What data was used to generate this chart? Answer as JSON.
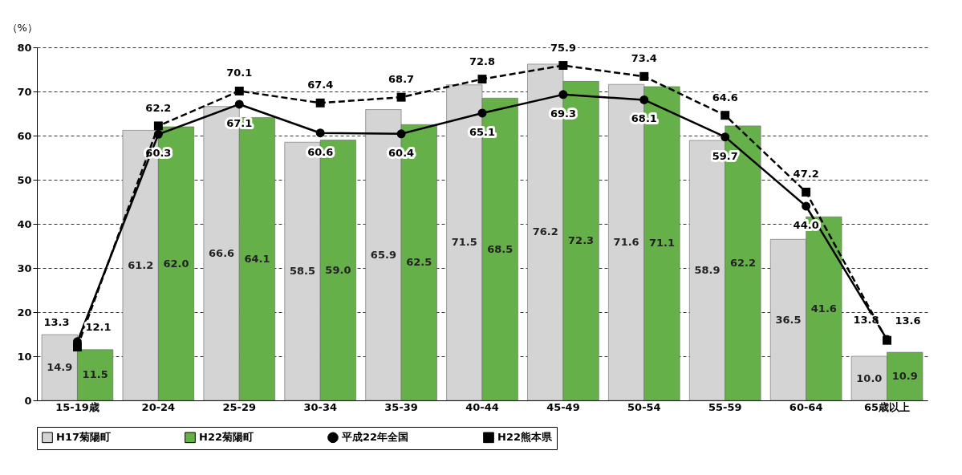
{
  "chart_data": {
    "type": "bar",
    "ylabel": "（%）",
    "categories": [
      "15-19歳",
      "20-24",
      "25-29",
      "30-34",
      "35-39",
      "40-44",
      "45-49",
      "50-54",
      "55-59",
      "60-64",
      "65歳以上"
    ],
    "series": [
      {
        "name": "H17菊陽町",
        "color": "#d4d4d4",
        "values": [
          14.9,
          61.2,
          66.6,
          58.5,
          65.9,
          71.5,
          76.2,
          71.6,
          58.9,
          36.5,
          10.0
        ],
        "value_labels": [
          "14.9",
          "61.2",
          "66.6",
          "58.5",
          "65.9",
          "71.5",
          "76.2",
          "71.6",
          "58.9",
          "36.5",
          "10.0"
        ]
      },
      {
        "name": "H22菊陽町",
        "color": "#66b04a",
        "values": [
          11.5,
          62.0,
          64.1,
          59.0,
          62.5,
          68.5,
          72.3,
          71.1,
          62.2,
          41.6,
          10.9
        ],
        "value_labels": [
          "11.5",
          "62.0",
          "64.1",
          "59.0",
          "62.5",
          "68.5",
          "72.3",
          "71.1",
          "62.2",
          "41.6",
          "10.9"
        ]
      },
      {
        "name": "平成22年全国",
        "type": "line",
        "color": "#000000",
        "marker": "circle",
        "line_style": "solid",
        "values": [
          13.3,
          60.3,
          67.1,
          60.6,
          60.4,
          65.1,
          69.3,
          68.1,
          59.7,
          44.0,
          13.8
        ],
        "value_labels": [
          "13.3",
          "60.3",
          "67.1",
          "60.6",
          "60.4",
          "65.1",
          "69.3",
          "68.1",
          "59.7",
          "44.0",
          "13.8"
        ]
      },
      {
        "name": "H22熊本県",
        "type": "line",
        "color": "#000000",
        "marker": "square",
        "line_style": "dashed",
        "values": [
          12.1,
          62.2,
          70.1,
          67.4,
          68.7,
          72.8,
          75.9,
          73.4,
          64.6,
          47.2,
          13.6
        ],
        "value_labels": [
          "12.1",
          "62.2",
          "70.1",
          "67.4",
          "68.7",
          "72.8",
          "75.9",
          "73.4",
          "64.6",
          "47.2",
          "13.6"
        ]
      }
    ],
    "ylim": [
      0,
      80
    ],
    "yticks": [
      0,
      10,
      20,
      30,
      40,
      50,
      60,
      70,
      80
    ],
    "grid": "y",
    "legend": "bottom"
  }
}
